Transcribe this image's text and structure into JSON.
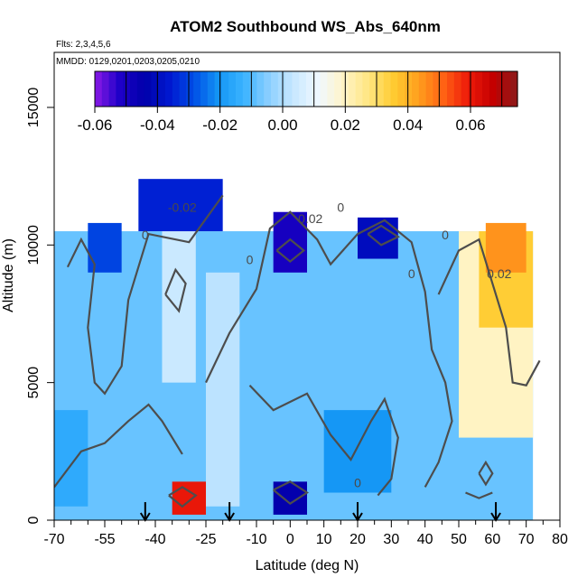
{
  "chart_data": {
    "type": "heatmap",
    "title": "ATOM2 Southbound WS_Abs_640nm",
    "flights_note": "Flts: 2,3,4,5,6",
    "dates_note": "MMDD: 0129,0201,0203,0205,0210",
    "xlabel": "Latitude (deg N)",
    "ylabel": "Altitude (m)",
    "xlim": [
      -70,
      80
    ],
    "ylim": [
      0,
      17000
    ],
    "x_ticks": [
      -70,
      -55,
      -40,
      -25,
      -10,
      0,
      10,
      20,
      30,
      40,
      50,
      60,
      70,
      80
    ],
    "x_minor_ticks": [
      -65,
      -60,
      -50,
      -45,
      -35,
      -30,
      -20,
      -15,
      -5,
      5,
      15,
      25,
      35,
      45,
      55,
      65,
      75
    ],
    "y_ticks": [
      0,
      5000,
      10000,
      15000
    ],
    "colorbar": {
      "min": -0.06,
      "max": 0.075,
      "ticks": [
        -0.06,
        -0.04,
        -0.02,
        0.0,
        0.02,
        0.04,
        0.06
      ],
      "tick_labels": [
        "-0.06",
        "-0.04",
        "-0.02",
        "0.00",
        "0.02",
        "0.04",
        "0.06"
      ],
      "colors": [
        "#8a1ae6",
        "#1e00c8",
        "#0000aa",
        "#0018d0",
        "#0050e6",
        "#1496f5",
        "#3cb4ff",
        "#8ccfff",
        "#c8e8ff",
        "#f0f8ff",
        "#fff4c8",
        "#ffe682",
        "#ffcc32",
        "#ffa01e",
        "#ff6414",
        "#ee1a0a",
        "#c40000",
        "#8b1a1a"
      ]
    },
    "contour_labels": [
      "-0.02",
      "0",
      "0",
      "0",
      "0",
      "0",
      "0",
      "0.02",
      "0.02"
    ],
    "profile_latitudes": [
      -43,
      -18,
      20,
      61
    ],
    "field_regions": [
      {
        "lat": [
          -70,
          72
        ],
        "alt": [
          0,
          10500
        ],
        "value": -0.008
      },
      {
        "lat": [
          -38,
          -28
        ],
        "alt": [
          5000,
          11000
        ],
        "value": 0.004
      },
      {
        "lat": [
          -25,
          -15
        ],
        "alt": [
          500,
          9000
        ],
        "value": 0.002
      },
      {
        "lat": [
          50,
          72
        ],
        "alt": [
          3000,
          10500
        ],
        "value": 0.02
      },
      {
        "lat": [
          56,
          72
        ],
        "alt": [
          7000,
          10500
        ],
        "value": 0.035
      },
      {
        "lat": [
          58,
          70
        ],
        "alt": [
          9000,
          10800
        ],
        "value": 0.045
      },
      {
        "lat": [
          -60,
          -50
        ],
        "alt": [
          9000,
          10800
        ],
        "value": -0.03
      },
      {
        "lat": [
          -45,
          -20
        ],
        "alt": [
          10500,
          12400
        ],
        "value": -0.035
      },
      {
        "lat": [
          -5,
          5
        ],
        "alt": [
          9000,
          11200
        ],
        "value": -0.05
      },
      {
        "lat": [
          20,
          32
        ],
        "alt": [
          9500,
          11000
        ],
        "value": -0.04
      },
      {
        "lat": [
          -35,
          -25
        ],
        "alt": [
          200,
          1400
        ],
        "value": 0.06
      },
      {
        "lat": [
          -5,
          5
        ],
        "alt": [
          200,
          1400
        ],
        "value": -0.045
      },
      {
        "lat": [
          -70,
          -60
        ],
        "alt": [
          500,
          4000
        ],
        "value": -0.015
      },
      {
        "lat": [
          10,
          30
        ],
        "alt": [
          1000,
          4000
        ],
        "value": -0.02
      }
    ]
  }
}
